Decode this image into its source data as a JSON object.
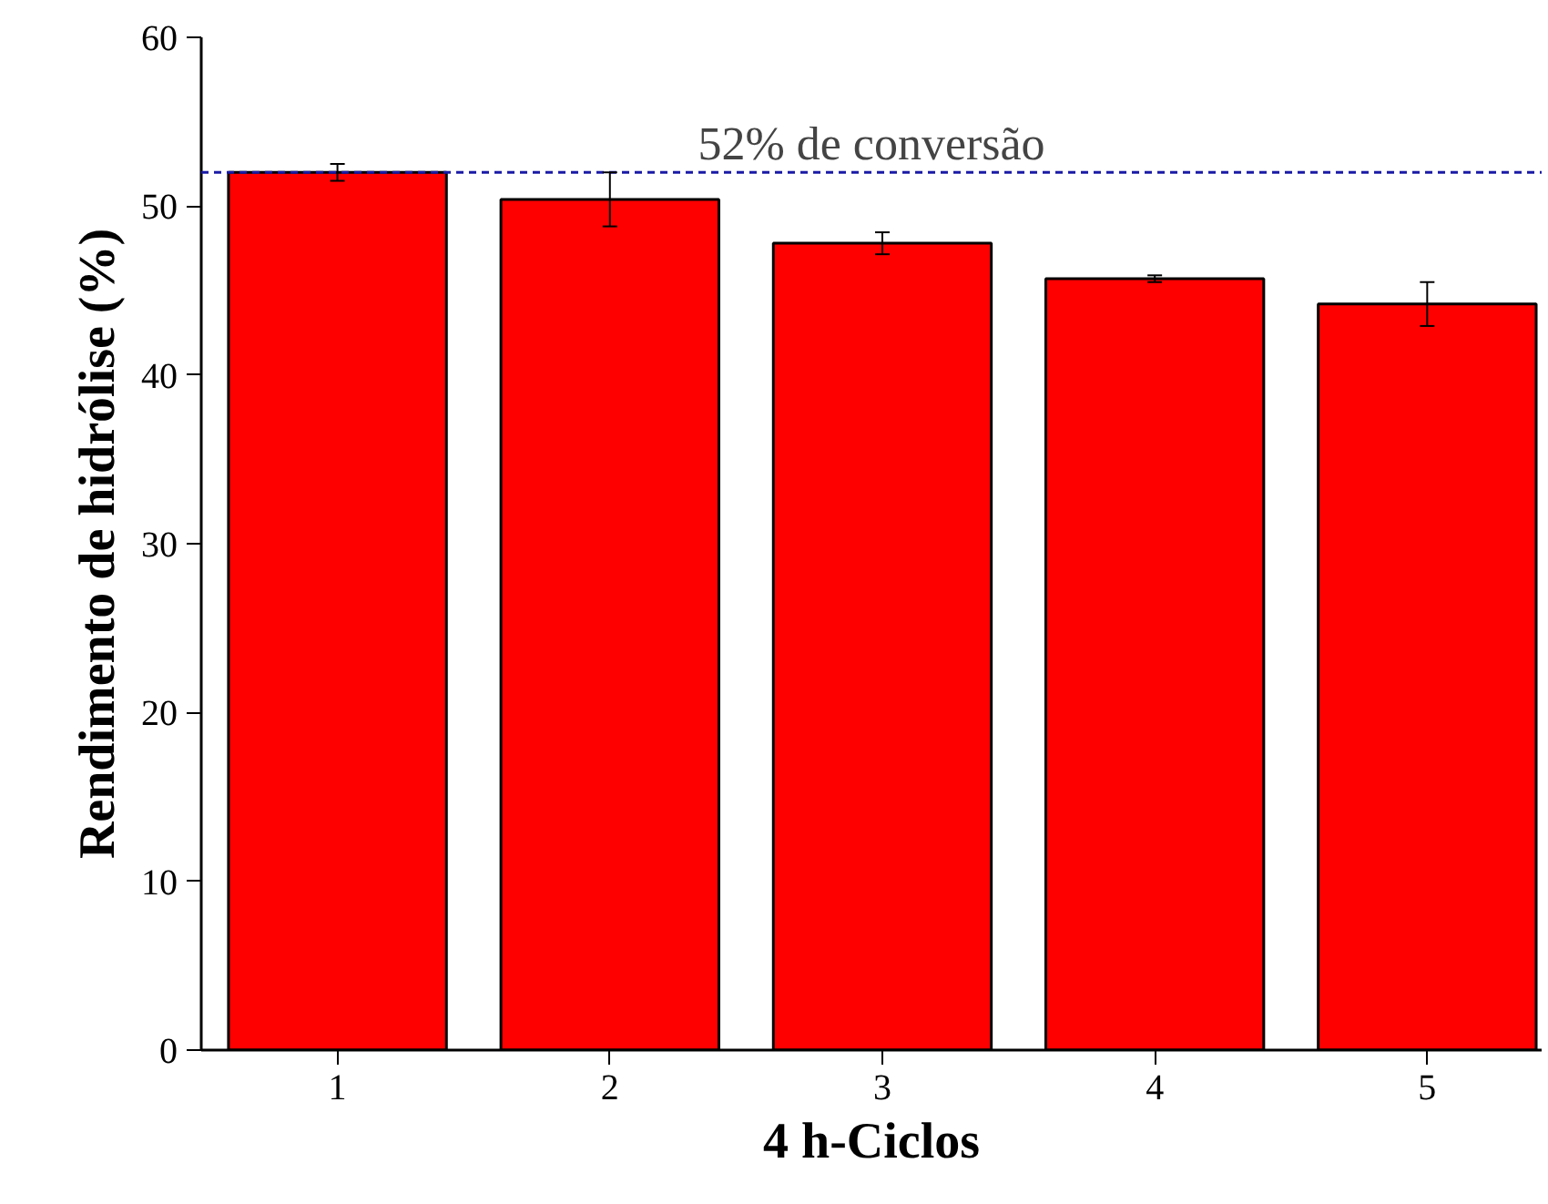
{
  "chart_data": {
    "type": "bar",
    "xlabel": "4 h-Ciclos",
    "ylabel": "Rendimento de hidrólise (%)",
    "categories": [
      "1",
      "2",
      "3",
      "4",
      "5"
    ],
    "values": [
      52.0,
      50.4,
      47.8,
      45.7,
      44.2
    ],
    "errors": [
      0.5,
      1.6,
      0.65,
      0.2,
      1.3
    ],
    "color": "#ff0000",
    "ylim": [
      0,
      60
    ],
    "yticks": [
      0,
      10,
      20,
      30,
      40,
      50,
      60
    ],
    "ref_lines": [
      {
        "axis": "y",
        "value": 52,
        "label": "52% de conversão",
        "color": "#1a1aa6",
        "line_style": "dashed"
      }
    ],
    "grid": false
  }
}
